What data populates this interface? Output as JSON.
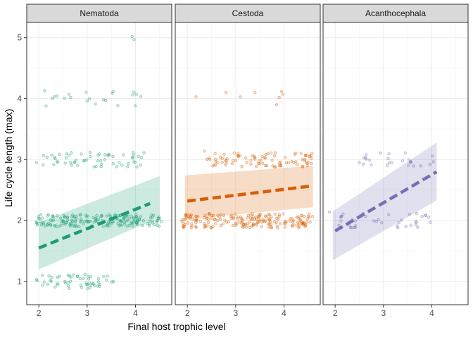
{
  "chart_data": {
    "type": "scatter",
    "title": "",
    "xlabel": "Final host trophic level",
    "ylabel": "Life cycle length (max)",
    "xlim": [
      1.75,
      4.75
    ],
    "ylim": [
      0.62,
      5.25
    ],
    "x_ticks": [
      "2",
      "3",
      "4"
    ],
    "y_ticks": [
      "1",
      "2",
      "3",
      "4",
      "5"
    ],
    "grid": true,
    "legend": "none",
    "panels": [
      {
        "name": "Nematoda",
        "color": "#1b9e77",
        "fit": {
          "x": [
            2.0,
            4.3
          ],
          "y": [
            1.55,
            2.28
          ]
        },
        "ribbon": {
          "x": [
            2.0,
            4.5
          ],
          "lower": [
            1.2,
            2.05
          ],
          "upper": [
            1.97,
            2.73
          ]
        },
        "clusters": [
          {
            "y": 1.0,
            "n": 55,
            "xmin": 1.93,
            "xmax": 3.55,
            "jit": 0.12
          },
          {
            "y": 2.0,
            "n": 190,
            "xmin": 1.93,
            "xmax": 4.55,
            "jit": 0.1
          },
          {
            "y": 3.0,
            "n": 60,
            "xmin": 1.93,
            "xmax": 4.2,
            "jit": 0.12
          },
          {
            "y": 4.0,
            "n": 20,
            "xmin": 2.1,
            "xmax": 4.15,
            "jit": 0.13
          }
        ],
        "extra_points": [
          {
            "x": 3.93,
            "y": 5.02
          },
          {
            "x": 3.97,
            "y": 4.97
          },
          {
            "x": 2.12,
            "y": 4.13
          },
          {
            "x": 2.15,
            "y": 3.88
          }
        ]
      },
      {
        "name": "Cestoda",
        "color": "#d95f02",
        "fit": {
          "x": [
            2.0,
            4.6
          ],
          "y": [
            2.32,
            2.57
          ]
        },
        "ribbon": {
          "x": [
            1.95,
            4.6
          ],
          "lower": [
            2.02,
            2.22
          ],
          "upper": [
            2.74,
            2.9
          ]
        },
        "clusters": [
          {
            "y": 2.0,
            "n": 200,
            "xmin": 1.88,
            "xmax": 4.6,
            "jit": 0.12
          },
          {
            "y": 3.0,
            "n": 90,
            "xmin": 2.4,
            "xmax": 4.65,
            "jit": 0.12
          }
        ],
        "extra_points": [
          {
            "x": 2.18,
            "y": 4.03
          },
          {
            "x": 2.8,
            "y": 4.1
          },
          {
            "x": 3.1,
            "y": 4.03
          },
          {
            "x": 3.4,
            "y": 4.1
          },
          {
            "x": 3.9,
            "y": 4.02
          },
          {
            "x": 3.95,
            "y": 4.12
          },
          {
            "x": 3.98,
            "y": 4.07
          },
          {
            "x": 3.85,
            "y": 3.9
          },
          {
            "x": 2.35,
            "y": 3.14
          }
        ]
      },
      {
        "name": "Acanthocephala",
        "color": "#7570b3",
        "fit": {
          "x": [
            2.0,
            4.1
          ],
          "y": [
            1.83,
            2.8
          ]
        },
        "ribbon": {
          "x": [
            1.95,
            4.1
          ],
          "lower": [
            1.35,
            2.33
          ],
          "upper": [
            2.15,
            3.28
          ]
        },
        "clusters": [
          {
            "y": 2.0,
            "n": 40,
            "xmin": 2.05,
            "xmax": 4.0,
            "jit": 0.12
          },
          {
            "y": 3.0,
            "n": 25,
            "xmin": 2.45,
            "xmax": 4.05,
            "jit": 0.12
          }
        ],
        "extra_points": [
          {
            "x": 1.88,
            "y": 2.14
          },
          {
            "x": 2.5,
            "y": 2.95
          }
        ]
      }
    ]
  }
}
